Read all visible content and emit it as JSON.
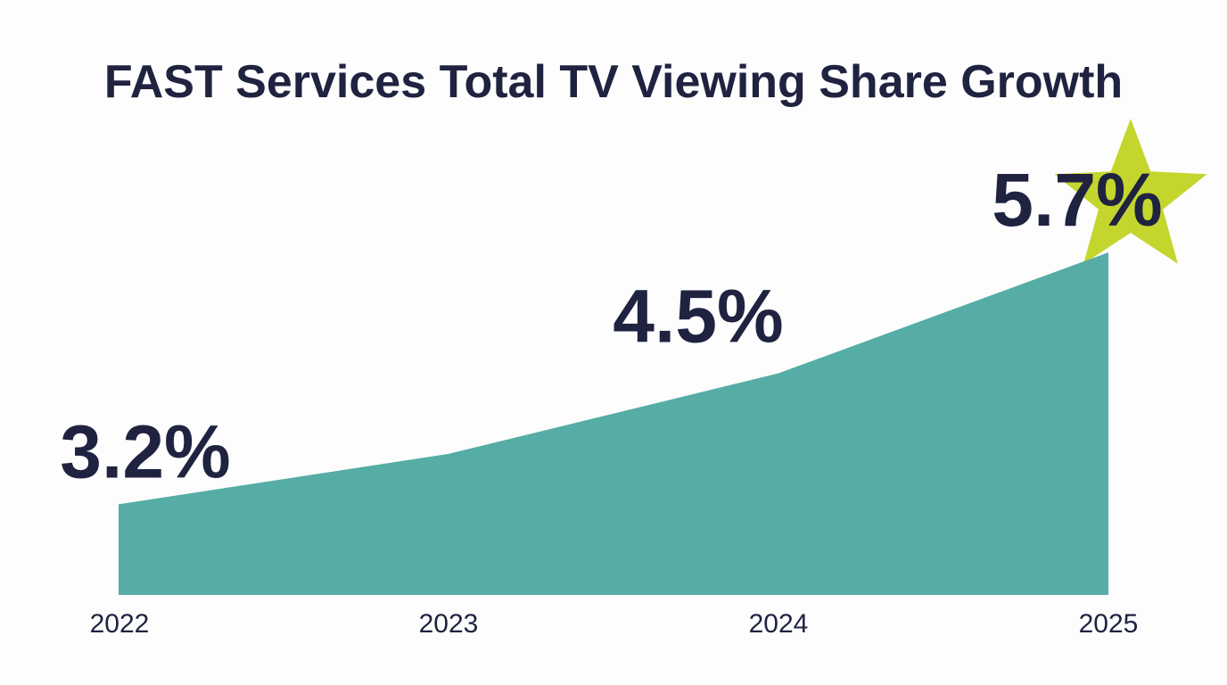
{
  "chart_data": {
    "type": "area",
    "title": "FAST Services Total TV Viewing Share Growth",
    "categories": [
      "2022",
      "2023",
      "2024",
      "2025"
    ],
    "values": [
      3.2,
      3.7,
      4.5,
      5.7
    ],
    "data_labels": [
      "3.2%",
      "",
      "4.5%",
      "5.7%"
    ],
    "xlabel": "",
    "ylabel": "",
    "ylim": [
      2.3,
      5.7
    ],
    "grid": false,
    "highlight": {
      "category": "2025",
      "marker": "star"
    },
    "colors": {
      "area": "#55ada5",
      "text": "#1f2340",
      "star": "#c4d62e"
    }
  }
}
